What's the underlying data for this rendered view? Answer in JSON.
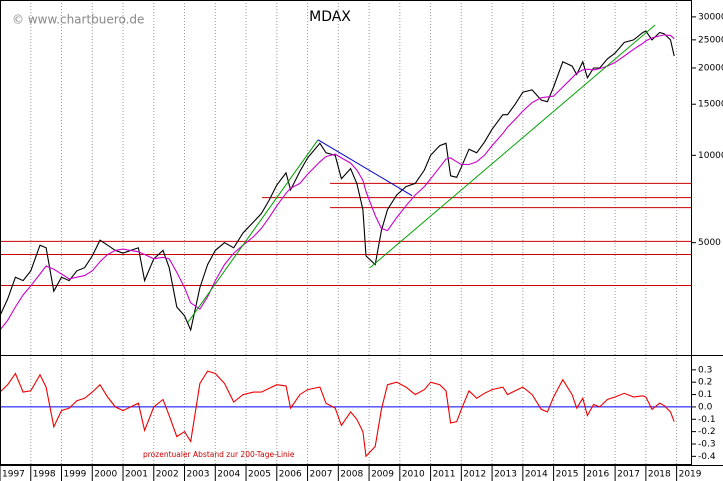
{
  "chart_data": [
    {
      "type": "line",
      "title": "MDAX",
      "watermark": "© www.chartbuero.de",
      "log_scale": true,
      "grid": true,
      "xlim": [
        1997,
        2019.5
      ],
      "ylim": [
        2050,
        34300
      ],
      "yticks": [
        5000,
        10000,
        15000,
        20000,
        25000,
        30000
      ],
      "x": [
        1997.0,
        1997.25,
        1997.5,
        1997.75,
        1998.0,
        1998.3,
        1998.5,
        1998.75,
        1999.0,
        1999.25,
        1999.5,
        1999.75,
        2000.0,
        2000.25,
        2000.5,
        2000.75,
        2001.0,
        2001.25,
        2001.5,
        2001.7,
        2002.0,
        2002.3,
        2002.5,
        2002.75,
        2003.0,
        2003.2,
        2003.5,
        2003.75,
        2004.0,
        2004.3,
        2004.6,
        2004.9,
        2005.25,
        2005.5,
        2005.75,
        2006.0,
        2006.3,
        2006.45,
        2006.75,
        2007.0,
        2007.4,
        2007.6,
        2007.9,
        2008.1,
        2008.4,
        2008.6,
        2008.8,
        2008.9,
        2009.2,
        2009.4,
        2009.6,
        2009.9,
        2010.2,
        2010.5,
        2010.8,
        2011.0,
        2011.3,
        2011.5,
        2011.65,
        2011.85,
        2012.0,
        2012.25,
        2012.5,
        2012.75,
        2013.0,
        2013.35,
        2013.5,
        2013.75,
        2014.0,
        2014.3,
        2014.6,
        2014.8,
        2015.0,
        2015.3,
        2015.6,
        2015.75,
        2015.95,
        2016.1,
        2016.3,
        2016.5,
        2016.75,
        2017.0,
        2017.3,
        2017.6,
        2017.9,
        2018.0,
        2018.2,
        2018.45,
        2018.6,
        2018.8,
        2018.92
      ],
      "series": [
        {
          "color": "#000000",
          "values": [
            2800,
            3200,
            3800,
            3700,
            4000,
            4900,
            4800,
            3400,
            3800,
            3700,
            4000,
            4100,
            4500,
            5100,
            4900,
            4700,
            4600,
            4700,
            4800,
            3700,
            4400,
            4700,
            4100,
            3000,
            2800,
            2500,
            3500,
            4200,
            4700,
            5000,
            4800,
            5400,
            5900,
            6300,
            7000,
            7900,
            8700,
            7600,
            8800,
            9800,
            11000,
            10200,
            10000,
            8300,
            9000,
            8000,
            6500,
            4500,
            4200,
            5500,
            6500,
            7300,
            7800,
            8000,
            8900,
            10000,
            10800,
            11000,
            8500,
            8400,
            9100,
            10500,
            10200,
            11100,
            12300,
            13800,
            13800,
            15000,
            16500,
            16800,
            15500,
            15300,
            17200,
            21000,
            20300,
            19000,
            21000,
            18500,
            20000,
            20000,
            21500,
            22500,
            24500,
            25000,
            26500,
            26800,
            25000,
            26500,
            26200,
            25000,
            22000
          ]
        },
        {
          "color": "#cc00cc",
          "values": [
            2500,
            2700,
            3000,
            3300,
            3550,
            3900,
            4150,
            4050,
            3900,
            3750,
            3800,
            3850,
            4000,
            4300,
            4550,
            4700,
            4750,
            4700,
            4650,
            4550,
            4400,
            4450,
            4400,
            3950,
            3500,
            3100,
            2950,
            3250,
            3700,
            4200,
            4600,
            4900,
            5250,
            5600,
            6100,
            6700,
            7400,
            7700,
            8000,
            8600,
            9500,
            9900,
            10100,
            9800,
            9400,
            8900,
            8200,
            7500,
            6200,
            5600,
            5500,
            6100,
            6700,
            7300,
            7800,
            8300,
            9100,
            9700,
            9800,
            9500,
            9300,
            9300,
            9500,
            10000,
            10800,
            11900,
            12500,
            13300,
            14200,
            15200,
            15800,
            15900,
            16000,
            17200,
            18500,
            19200,
            19700,
            19800,
            19700,
            19900,
            20300,
            20900,
            22000,
            23200,
            24300,
            24800,
            25400,
            25800,
            26000,
            25900,
            25200
          ]
        }
      ],
      "hlines": [
        {
          "value": 8000,
          "from": 2007.73,
          "color": "#cc0000"
        },
        {
          "value": 7150,
          "from": 2005.52,
          "color": "#cc0000"
        },
        {
          "value": 6600,
          "from": 2007.73,
          "color": "#cc0000"
        },
        {
          "value": 5050,
          "from": 1997,
          "color": "#cc0000"
        },
        {
          "value": 4550,
          "from": 1997,
          "color": "#cc0000"
        },
        {
          "value": 3560,
          "from": 1997,
          "color": "#cc0000"
        }
      ],
      "trendlines": [
        {
          "x": [
            2003.11,
            2007.34
          ],
          "y": [
            2655,
            11310
          ],
          "color": "#00a000"
        },
        {
          "x": [
            2009.03,
            2018.3
          ],
          "y": [
            4100,
            28130
          ],
          "color": "#00a000"
        },
        {
          "x": [
            2007.34,
            2010.4
          ],
          "y": [
            11310,
            7260
          ],
          "color": "#0000cc"
        }
      ]
    },
    {
      "type": "line",
      "annotation": "prozentualer Abstand zur 200-Tage-Linie",
      "grid": true,
      "xlim": [
        1997,
        2019.5
      ],
      "ylim": [
        -0.47,
        0.42
      ],
      "xticks": [
        1997,
        1998,
        1999,
        2000,
        2001,
        2002,
        2003,
        2004,
        2005,
        2006,
        2007,
        2008,
        2009,
        2010,
        2011,
        2012,
        2013,
        2014,
        2015,
        2016,
        2017,
        2018,
        2019
      ],
      "yticks": [
        0.3,
        0.2,
        0.1,
        {
          "value": 0,
          "label": "0.0"
        },
        -0.1,
        -0.2,
        -0.3,
        -0.4
      ],
      "zero_line": {
        "value": 0,
        "color": "#0000ff"
      },
      "x": [
        1997.0,
        1997.25,
        1997.5,
        1997.75,
        1998.0,
        1998.3,
        1998.5,
        1998.75,
        1999.0,
        1999.25,
        1999.5,
        1999.75,
        2000.0,
        2000.25,
        2000.5,
        2000.75,
        2001.0,
        2001.25,
        2001.5,
        2001.7,
        2002.0,
        2002.3,
        2002.5,
        2002.75,
        2003.0,
        2003.2,
        2003.5,
        2003.75,
        2004.0,
        2004.3,
        2004.6,
        2004.9,
        2005.25,
        2005.5,
        2005.75,
        2006.0,
        2006.3,
        2006.45,
        2006.75,
        2007.0,
        2007.4,
        2007.6,
        2007.9,
        2008.1,
        2008.4,
        2008.6,
        2008.8,
        2008.9,
        2009.2,
        2009.4,
        2009.6,
        2009.9,
        2010.2,
        2010.5,
        2010.8,
        2011.0,
        2011.3,
        2011.5,
        2011.65,
        2011.85,
        2012.0,
        2012.25,
        2012.5,
        2012.75,
        2013.0,
        2013.35,
        2013.5,
        2013.75,
        2014.0,
        2014.3,
        2014.6,
        2014.8,
        2015.0,
        2015.3,
        2015.6,
        2015.75,
        2015.95,
        2016.1,
        2016.3,
        2016.5,
        2016.75,
        2017.0,
        2017.3,
        2017.6,
        2017.9,
        2018.0,
        2018.2,
        2018.45,
        2018.6,
        2018.8,
        2018.92
      ],
      "series": [
        {
          "color": "#ee0000",
          "values": [
            0.12,
            0.18,
            0.27,
            0.12,
            0.13,
            0.26,
            0.16,
            -0.16,
            -0.03,
            -0.01,
            0.05,
            0.07,
            0.12,
            0.18,
            0.08,
            0.0,
            -0.03,
            0.0,
            0.03,
            -0.19,
            0.0,
            0.06,
            -0.07,
            -0.24,
            -0.2,
            -0.28,
            0.19,
            0.29,
            0.27,
            0.19,
            0.04,
            0.1,
            0.12,
            0.12,
            0.15,
            0.18,
            0.17,
            -0.01,
            0.1,
            0.14,
            0.16,
            0.03,
            -0.01,
            -0.15,
            -0.04,
            -0.1,
            -0.2,
            -0.4,
            -0.32,
            -0.02,
            0.18,
            0.2,
            0.16,
            0.1,
            0.14,
            0.2,
            0.18,
            0.13,
            -0.13,
            -0.12,
            -0.02,
            0.13,
            0.07,
            0.11,
            0.14,
            0.16,
            0.1,
            0.13,
            0.16,
            0.1,
            -0.02,
            -0.04,
            0.08,
            0.22,
            0.1,
            -0.01,
            0.07,
            -0.07,
            0.02,
            0.0,
            0.06,
            0.08,
            0.11,
            0.08,
            0.09,
            0.08,
            -0.02,
            0.03,
            0.01,
            -0.04,
            -0.12
          ]
        }
      ]
    }
  ]
}
